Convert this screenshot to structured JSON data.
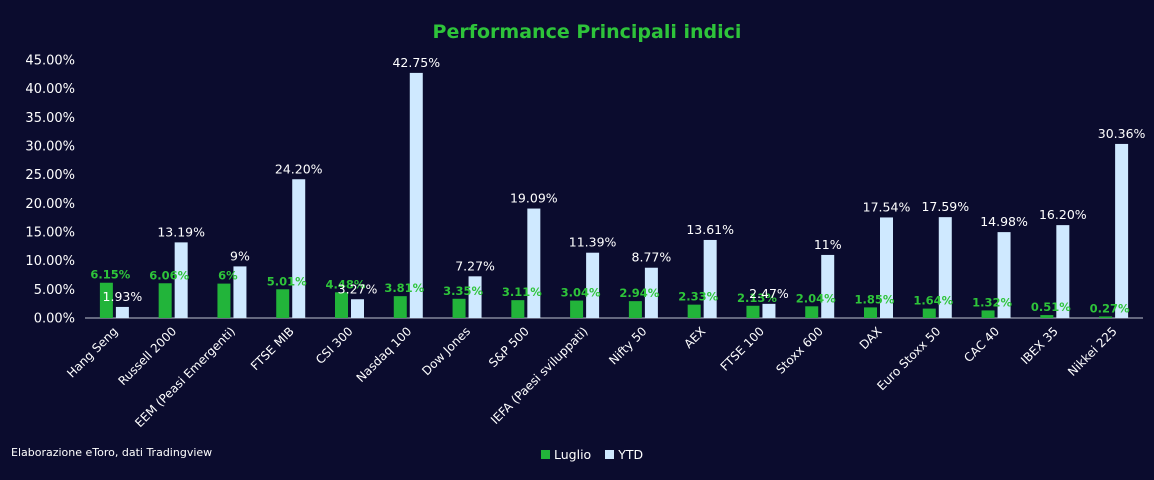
{
  "chart_data": {
    "type": "bar",
    "title": "Performance Principali indici",
    "categories": [
      "Hang Seng",
      "Russell 2000",
      "EEM (Peasi Emergenti)",
      "FTSE MIB",
      "CSI 300",
      "Nasdaq 100",
      "Dow Jones",
      "S&P 500",
      "IEFA (Paesi sviluppati)",
      "Nifty 50",
      "AEX",
      "FTSE 100",
      "Stoxx 600",
      "DAX",
      "Euro Stoxx 50",
      "CAC 40",
      "IBEX 35",
      "Nikkei 225"
    ],
    "series": [
      {
        "name": "Luglio",
        "values": [
          6.15,
          6.06,
          6,
          5.01,
          4.48,
          3.81,
          3.35,
          3.11,
          3.04,
          2.94,
          2.33,
          2.13,
          2.04,
          1.85,
          1.64,
          1.32,
          0.51,
          0.27
        ],
        "labels": [
          "6.15%",
          "6.06%",
          "6%",
          "5.01%",
          "4.48%",
          "3.81%",
          "3.35%",
          "3.11%",
          "3.04%",
          "2.94%",
          "2.33%",
          "2.13%",
          "2.04%",
          "1.85%",
          "1.64%",
          "1.32%",
          "0.51%",
          "0.27%"
        ]
      },
      {
        "name": "YTD",
        "values": [
          1.93,
          13.19,
          9,
          24.2,
          3.27,
          42.75,
          7.27,
          19.09,
          11.39,
          8.77,
          13.61,
          2.47,
          11,
          17.54,
          17.59,
          14.98,
          16.2,
          30.36
        ],
        "labels": [
          "1.93%",
          "13.19%",
          "9%",
          "24.20%",
          "3.27%",
          "42.75%",
          "7.27%",
          "19.09%",
          "11.39%",
          "8.77%",
          "13.61%",
          "2.47%",
          "11%",
          "17.54%",
          "17.59%",
          "14.98%",
          "16.20%",
          "30.36%"
        ]
      }
    ],
    "ylim": [
      0,
      45
    ],
    "yticks": [
      "0.00%",
      "5.00%",
      "10.00%",
      "15.00%",
      "20.00%",
      "25.00%",
      "30.00%",
      "35.00%",
      "40.00%",
      "45.00%"
    ],
    "colors": {
      "Luglio": "#22b43a",
      "YTD": "#cfe9ff",
      "axis": "#bfc3d0",
      "title": "#2ec43a",
      "background": "#0b0c2e"
    },
    "grid": false,
    "legend_position": "bottom-center"
  },
  "footer": "Elaborazione eToro, dati Tradingview"
}
